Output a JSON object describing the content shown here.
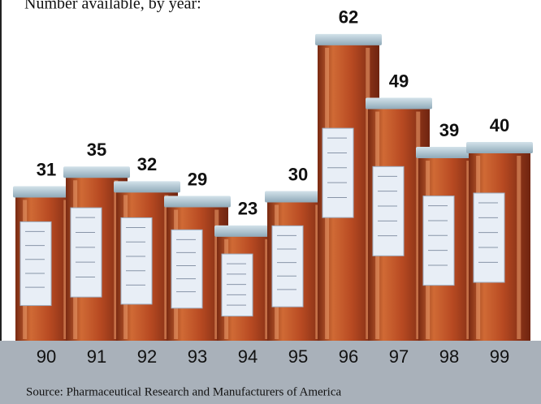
{
  "chart_data": {
    "type": "pictograph-bar",
    "title": "Number available, by year:",
    "categories": [
      "90",
      "91",
      "92",
      "93",
      "94",
      "95",
      "96",
      "97",
      "98",
      "99"
    ],
    "values": [
      31,
      35,
      32,
      29,
      23,
      30,
      62,
      49,
      39,
      40
    ],
    "color": "#c0582a",
    "source": "Source: Pharmaceutical Research and Manufacturers of America"
  }
}
